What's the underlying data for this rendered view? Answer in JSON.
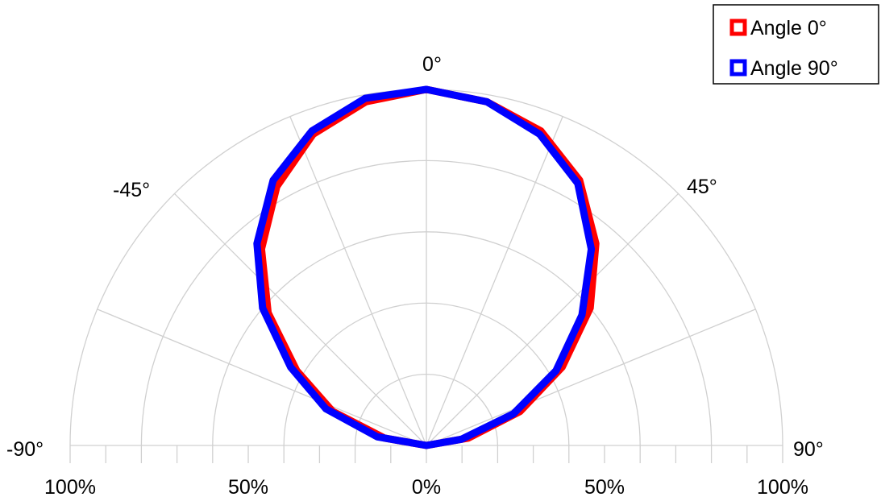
{
  "chart_data": {
    "type": "polar-line",
    "title": "",
    "angle_range": [
      -90,
      90
    ],
    "angle_ticks": [
      {
        "value": -90,
        "label": "-90°"
      },
      {
        "value": -45,
        "label": "-45°"
      },
      {
        "value": 0,
        "label": "0°"
      },
      {
        "value": 45,
        "label": "45°"
      },
      {
        "value": 90,
        "label": "90°"
      }
    ],
    "radial_ticks": [
      {
        "value": -100,
        "label": "100%"
      },
      {
        "value": -50,
        "label": "50%"
      },
      {
        "value": 0,
        "label": "0%"
      },
      {
        "value": 50,
        "label": "50%"
      },
      {
        "value": 100,
        "label": "100%"
      }
    ],
    "radial_range": [
      0,
      100
    ],
    "grid_rings": [
      20,
      40,
      60,
      80,
      100
    ],
    "grid_spokes_step": 22.5,
    "legend_position": "top-right",
    "series": [
      {
        "name": "Angle 0°",
        "color": "#ff0000",
        "angles": [
          -90,
          -80,
          -70,
          -60,
          -50,
          -40,
          -30,
          -20,
          -10,
          0,
          10,
          20,
          30,
          40,
          50,
          60,
          70,
          80,
          90
        ],
        "values": [
          0,
          12,
          28,
          42,
          58,
          72,
          84,
          93,
          98,
          100,
          98,
          94,
          86,
          74,
          60,
          44,
          28,
          12,
          0
        ]
      },
      {
        "name": "Angle 90°",
        "color": "#0000ff",
        "angles": [
          -90,
          -80,
          -70,
          -60,
          -50,
          -40,
          -30,
          -20,
          -10,
          0,
          10,
          20,
          30,
          40,
          50,
          60,
          70,
          80,
          90
        ],
        "values": [
          0,
          14,
          30,
          44,
          60,
          74,
          86,
          94,
          99,
          100,
          98,
          93,
          85,
          72,
          57,
          42,
          26,
          10,
          0
        ]
      }
    ]
  }
}
